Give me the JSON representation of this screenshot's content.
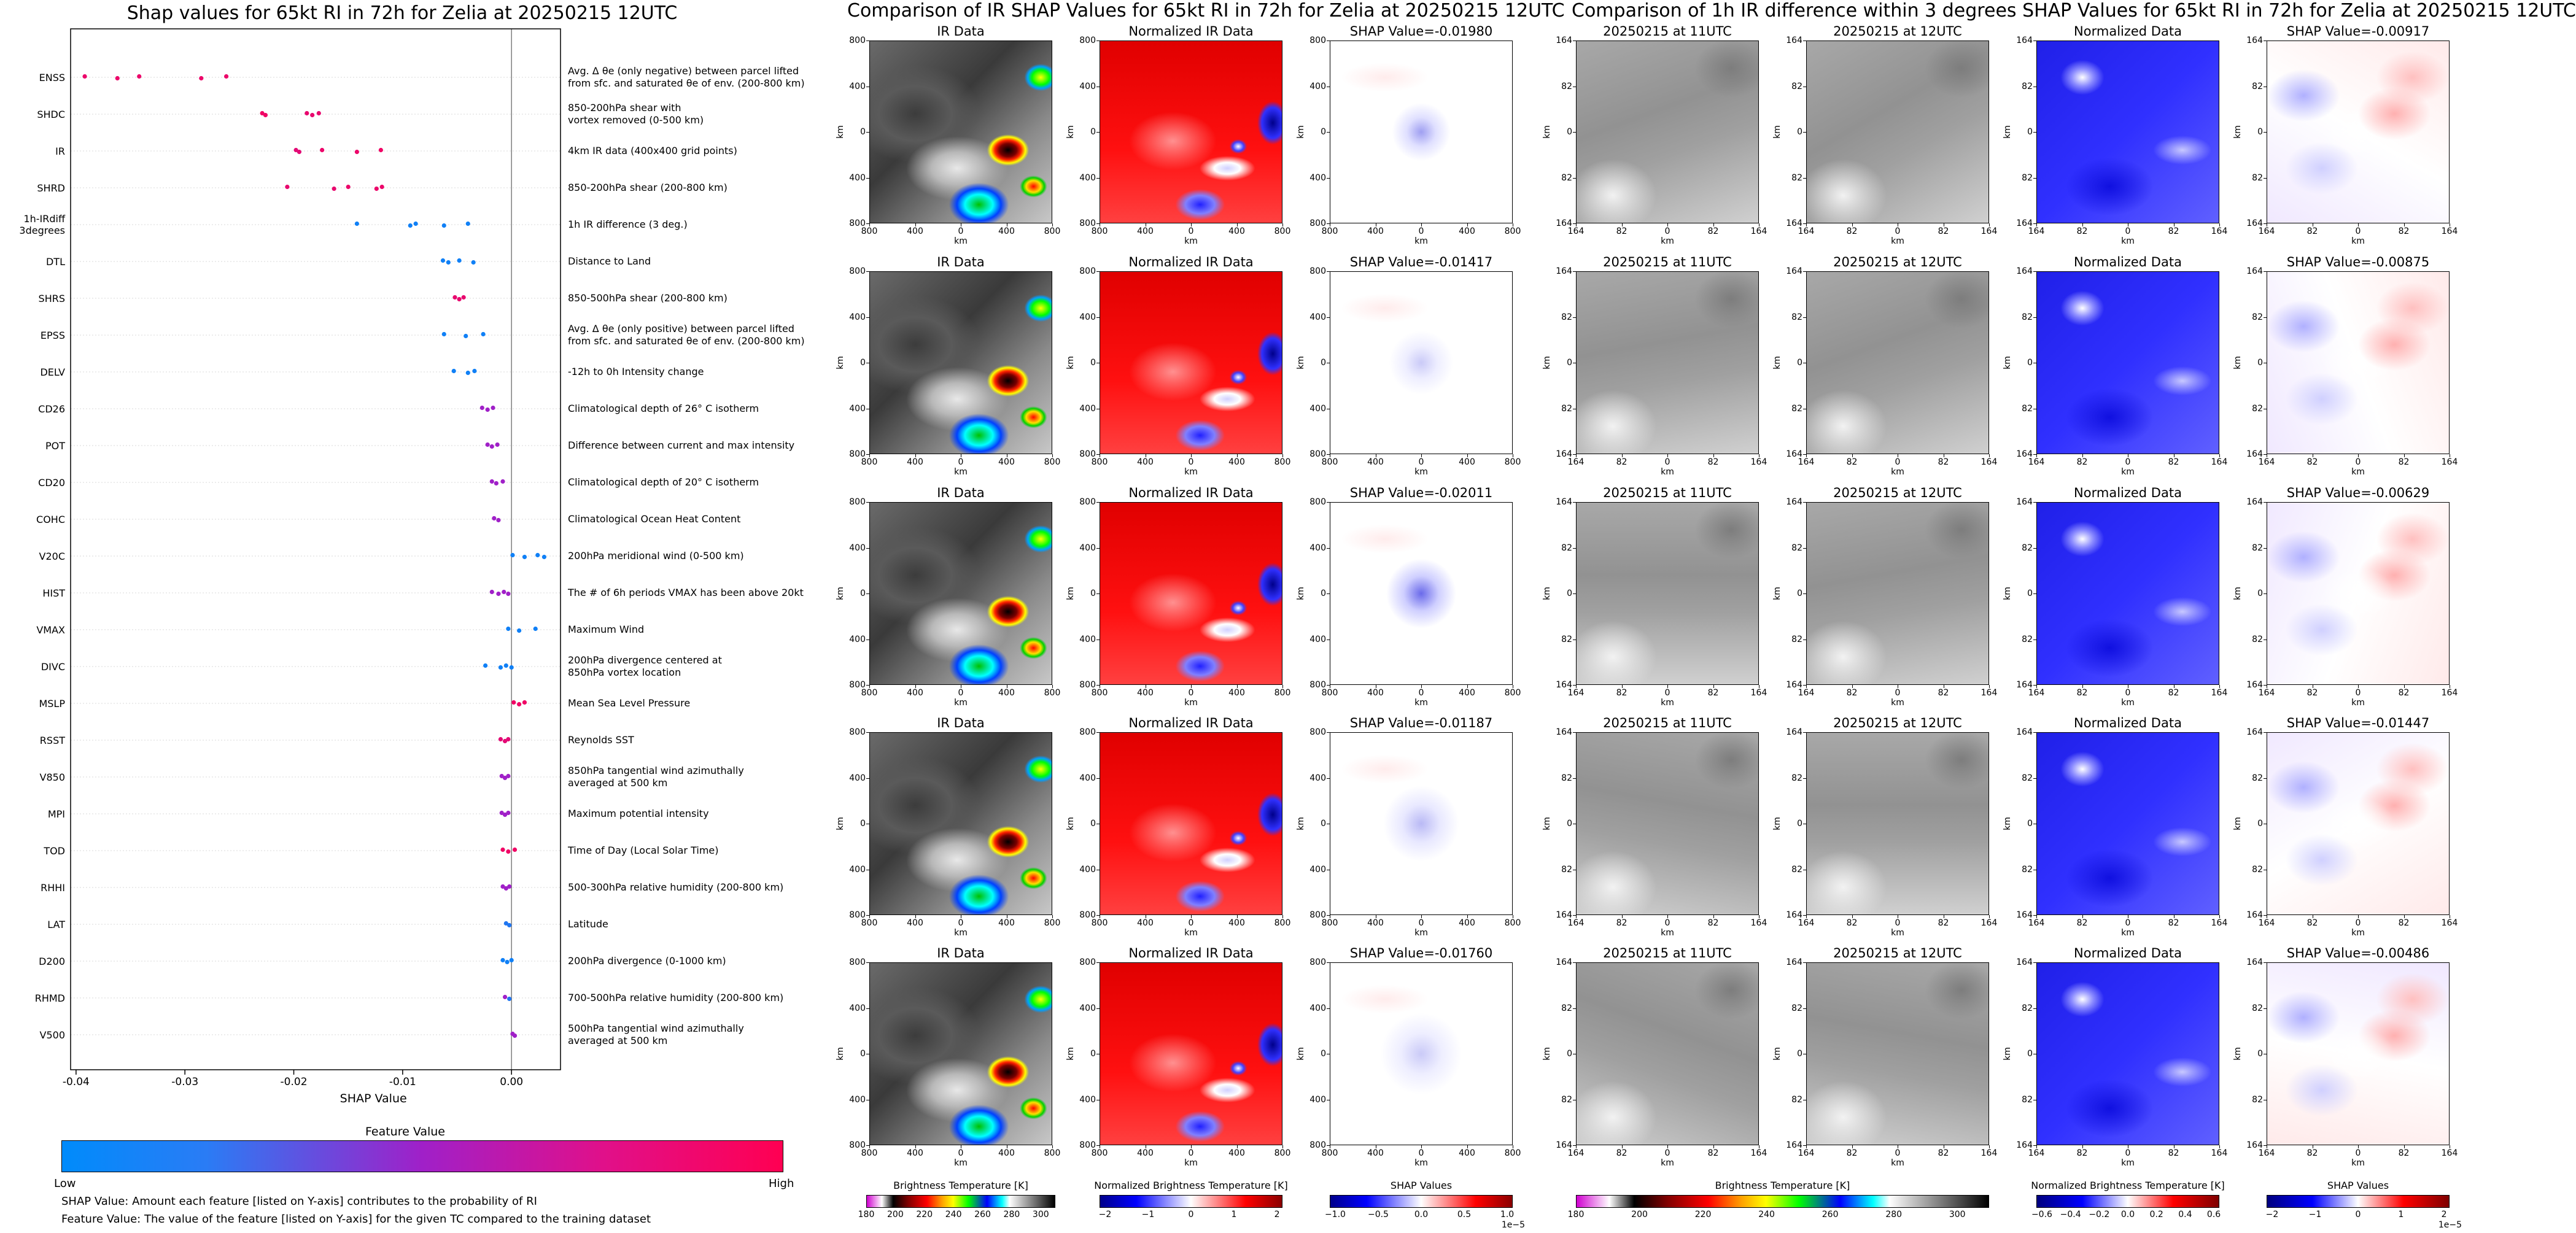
{
  "titles": {
    "main": "Shap values for 65kt RI in 72h for Zelia at 20250215 12UTC",
    "middle": "Comparison of IR SHAP Values for 65kt RI in 72h for Zelia at 20250215 12UTC",
    "right": "Comparison of 1h IR difference within 3 degrees SHAP Values for 65kt RI in 72h for Zelia at 20250215 12UTC"
  },
  "legend": {
    "feature_value": "Feature Value",
    "low": "Low",
    "high": "High",
    "note1": "SHAP Value: Amount each feature [listed on Y-axis] contributes to the probability of RI",
    "note2": "Feature Value: The value of the feature [listed on Y-axis] for the given TC compared to the training dataset"
  },
  "colors": {
    "low": "#008bfb",
    "high": "#ff0052",
    "mid": "#a020c8"
  },
  "chart_data": [
    {
      "type": "scatter",
      "title": "Shap values for 65kt RI in 72h for Zelia at 20250215 12UTC",
      "xlabel": "SHAP Value",
      "xlim": [
        -0.0405,
        0.0045
      ],
      "xticks": [
        -0.04,
        -0.03,
        -0.02,
        -0.01,
        0.0
      ],
      "xtick_labels": [
        "-0.04",
        "-0.03",
        "-0.02",
        "-0.01",
        "0.00"
      ],
      "features": [
        {
          "name": "ENSS",
          "desc": "Avg. Δ θe (only negative) between parcel lifted\nfrom sfc. and saturated θe of env. (200-800 km)",
          "points": [
            [
              -0.0392,
              0.9
            ],
            [
              -0.0362,
              0.9
            ],
            [
              -0.0342,
              0.9
            ],
            [
              -0.0285,
              0.9
            ],
            [
              -0.0262,
              0.9
            ]
          ]
        },
        {
          "name": "SHDC",
          "desc": "850-200hPa shear with\nvortex removed (0-500 km)",
          "points": [
            [
              -0.0229,
              0.92
            ],
            [
              -0.0226,
              0.92
            ],
            [
              -0.0188,
              0.88
            ],
            [
              -0.0183,
              0.88
            ],
            [
              -0.0177,
              0.88
            ]
          ]
        },
        {
          "name": "IR",
          "desc": "4km IR data (400x400 grid points)",
          "points": [
            [
              -0.0198,
              0.85
            ],
            [
              -0.0195,
              0.85
            ],
            [
              -0.0174,
              0.9
            ],
            [
              -0.0142,
              0.9
            ],
            [
              -0.012,
              0.92
            ]
          ]
        },
        {
          "name": "SHRD",
          "desc": "850-200hPa shear (200-800 km)",
          "points": [
            [
              -0.0206,
              0.88
            ],
            [
              -0.0163,
              0.88
            ],
            [
              -0.015,
              0.9
            ],
            [
              -0.0124,
              0.9
            ],
            [
              -0.0119,
              0.9
            ]
          ]
        },
        {
          "name": "1h-IRdiff\n3degrees",
          "desc": "1h IR difference (3 deg.)",
          "points": [
            [
              -0.0142,
              0.05
            ],
            [
              -0.0093,
              0.05
            ],
            [
              -0.0088,
              0.05
            ],
            [
              -0.0062,
              0.05
            ],
            [
              -0.004,
              0.05
            ]
          ]
        },
        {
          "name": "DTL",
          "desc": "Distance to Land",
          "points": [
            [
              -0.0063,
              0.05
            ],
            [
              -0.0058,
              0.05
            ],
            [
              -0.0048,
              0.05
            ],
            [
              -0.0035,
              0.05
            ]
          ]
        },
        {
          "name": "SHRS",
          "desc": "850-500hPa shear (200-800 km)",
          "points": [
            [
              -0.0052,
              0.88
            ],
            [
              -0.0048,
              0.88
            ],
            [
              -0.0044,
              0.88
            ]
          ]
        },
        {
          "name": "EPSS",
          "desc": "Avg. Δ θe (only positive) between parcel lifted\nfrom sfc. and saturated θe of env. (200-800 km)",
          "points": [
            [
              -0.0062,
              0.05
            ],
            [
              -0.0042,
              0.05
            ],
            [
              -0.0026,
              0.05
            ]
          ]
        },
        {
          "name": "DELV",
          "desc": "-12h to 0h Intensity change",
          "points": [
            [
              -0.0053,
              0.05
            ],
            [
              -0.004,
              0.05
            ],
            [
              -0.0034,
              0.05
            ]
          ]
        },
        {
          "name": "CD26",
          "desc": "Climatological depth of 26° C isotherm",
          "points": [
            [
              -0.0027,
              0.5
            ],
            [
              -0.0022,
              0.5
            ],
            [
              -0.0017,
              0.5
            ]
          ]
        },
        {
          "name": "POT",
          "desc": "Difference between current and max intensity",
          "points": [
            [
              -0.0022,
              0.5
            ],
            [
              -0.0018,
              0.5
            ],
            [
              -0.0013,
              0.5
            ]
          ]
        },
        {
          "name": "CD20",
          "desc": "Climatological depth of 20° C isotherm",
          "points": [
            [
              -0.0018,
              0.5
            ],
            [
              -0.0014,
              0.5
            ],
            [
              -0.0008,
              0.5
            ]
          ]
        },
        {
          "name": "COHC",
          "desc": "Climatological Ocean Heat Content",
          "points": [
            [
              -0.0016,
              0.5
            ],
            [
              -0.0012,
              0.5
            ]
          ]
        },
        {
          "name": "V20C",
          "desc": "200hPa meridional wind (0-500 km)",
          "points": [
            [
              0.0001,
              0.05
            ],
            [
              0.0012,
              0.05
            ],
            [
              0.0024,
              0.05
            ],
            [
              0.003,
              0.05
            ]
          ]
        },
        {
          "name": "HIST",
          "desc": "The # of 6h periods VMAX has been above 20kt",
          "points": [
            [
              -0.0018,
              0.5
            ],
            [
              -0.0012,
              0.5
            ],
            [
              -0.0007,
              0.5
            ],
            [
              -0.0003,
              0.5
            ]
          ]
        },
        {
          "name": "VMAX",
          "desc": "Maximum Wind",
          "points": [
            [
              -0.0003,
              0.05
            ],
            [
              0.0007,
              0.05
            ],
            [
              0.0022,
              0.05
            ]
          ]
        },
        {
          "name": "DIVC",
          "desc": "200hPa divergence centered at\n850hPa vortex location",
          "points": [
            [
              -0.0024,
              0.05
            ],
            [
              -0.001,
              0.05
            ],
            [
              -0.0005,
              0.05
            ],
            [
              0.0,
              0.05
            ]
          ]
        },
        {
          "name": "MSLP",
          "desc": "Mean Sea Level Pressure",
          "points": [
            [
              0.0002,
              0.92
            ],
            [
              0.0007,
              0.92
            ],
            [
              0.0012,
              0.92
            ]
          ]
        },
        {
          "name": "RSST",
          "desc": "Reynolds SST",
          "points": [
            [
              -0.001,
              0.85
            ],
            [
              -0.0006,
              0.85
            ],
            [
              -0.0003,
              0.85
            ]
          ]
        },
        {
          "name": "V850",
          "desc": "850hPa tangential wind azimuthally\naveraged at 500 km",
          "points": [
            [
              -0.0009,
              0.5
            ],
            [
              -0.0006,
              0.5
            ],
            [
              -0.0003,
              0.5
            ]
          ]
        },
        {
          "name": "MPI",
          "desc": "Maximum potential intensity",
          "points": [
            [
              -0.0009,
              0.5
            ],
            [
              -0.0006,
              0.5
            ],
            [
              -0.0003,
              0.5
            ]
          ]
        },
        {
          "name": "TOD",
          "desc": "Time of Day (Local Solar Time)",
          "points": [
            [
              -0.0008,
              0.92
            ],
            [
              -0.0003,
              0.92
            ],
            [
              0.0003,
              0.92
            ]
          ]
        },
        {
          "name": "RHHI",
          "desc": "500-300hPa relative humidity (200-800 km)",
          "points": [
            [
              -0.0008,
              0.5
            ],
            [
              -0.0005,
              0.5
            ],
            [
              -0.0002,
              0.5
            ]
          ]
        },
        {
          "name": "LAT",
          "desc": "Latitude",
          "points": [
            [
              -0.0005,
              0.1
            ],
            [
              -0.0002,
              0.1
            ]
          ]
        },
        {
          "name": "D200",
          "desc": "200hPa divergence (0-1000 km)",
          "points": [
            [
              -0.0008,
              0.05
            ],
            [
              -0.0004,
              0.05
            ],
            [
              0.0,
              0.05
            ]
          ]
        },
        {
          "name": "RHMD",
          "desc": "700-500hPa relative humidity (200-800 km)",
          "points": [
            [
              -0.0006,
              0.5
            ],
            [
              -0.0002,
              0.1
            ]
          ]
        },
        {
          "name": "V500",
          "desc": "500hPa tangential wind azimuthally\naveraged at 500 km",
          "points": [
            [
              0.0001,
              0.5
            ],
            [
              0.0003,
              0.5
            ]
          ]
        }
      ]
    },
    {
      "type": "heatmap",
      "title": "Comparison of IR SHAP Values for 65kt RI in 72h for Zelia at 20250215 12UTC",
      "axis_label": "km",
      "xticks": [
        "800",
        "400",
        "0",
        "400",
        "800"
      ],
      "yticks": [
        "800",
        "400",
        "0",
        "400",
        "800"
      ],
      "panel_titles": [
        "IR Data",
        "Normalized IR Data"
      ],
      "shap_titles": [
        "SHAP Value=-0.01980",
        "SHAP Value=-0.01417",
        "SHAP Value=-0.02011",
        "SHAP Value=-0.01187",
        "SHAP Value=-0.01760"
      ],
      "colorbars": [
        {
          "label": "Brightness Temperature [K]",
          "ticks": [
            "180",
            "200",
            "220",
            "240",
            "260",
            "280",
            "300"
          ]
        },
        {
          "label": "Normalized Brightness Temperature [K]",
          "ticks": [
            "−2",
            "−1",
            "0",
            "1",
            "2"
          ]
        },
        {
          "label": "SHAP Values",
          "ticks": [
            "−1.0",
            "−0.5",
            "0.0",
            "0.5",
            "1.0"
          ],
          "scale": "1e−5"
        }
      ]
    },
    {
      "type": "heatmap",
      "title": "Comparison of 1h IR difference within 3 degrees SHAP Values for 65kt RI in 72h for Zelia at 20250215 12UTC",
      "axis_label": "km",
      "xticks": [
        "164",
        "82",
        "0",
        "82",
        "164"
      ],
      "yticks": [
        "164",
        "82",
        "0",
        "82",
        "164"
      ],
      "panel_titles": [
        "20250215 at 11UTC",
        "20250215 at 12UTC",
        "Normalized Data"
      ],
      "shap_titles": [
        "SHAP Value=-0.00917",
        "SHAP Value=-0.00875",
        "SHAP Value=-0.00629",
        "SHAP Value=-0.01447",
        "SHAP Value=-0.00486"
      ],
      "colorbars": [
        {
          "label": "Brightness Temperature [K]",
          "ticks": [
            "180",
            "200",
            "220",
            "240",
            "260",
            "280",
            "300"
          ]
        },
        {
          "label": "Normalized Brightness Temperature [K]",
          "ticks": [
            "−0.6",
            "−0.4",
            "−0.2",
            "0.0",
            "0.2",
            "0.4",
            "0.6"
          ]
        },
        {
          "label": "SHAP Values",
          "ticks": [
            "−2",
            "−1",
            "0",
            "1",
            "2"
          ],
          "scale": "1e−5"
        }
      ]
    }
  ]
}
